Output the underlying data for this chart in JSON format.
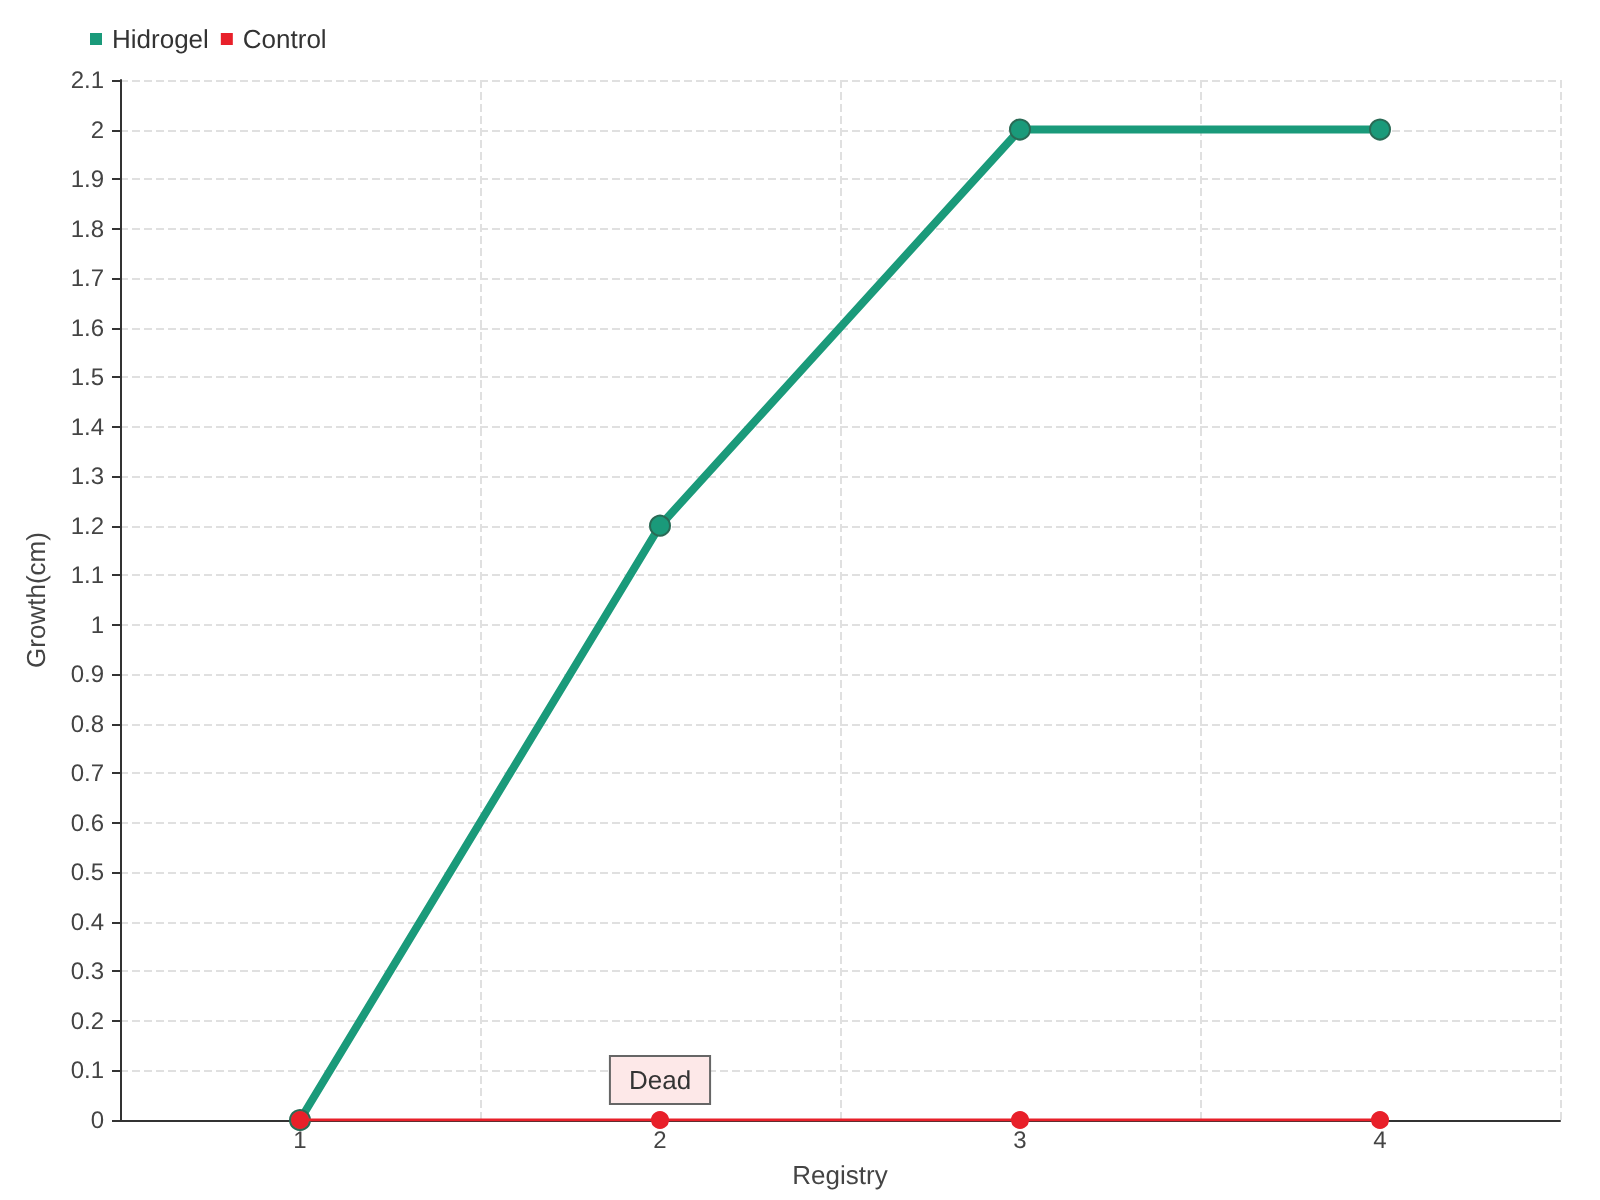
{
  "chart_data": {
    "type": "line",
    "xlabel": "Registry",
    "ylabel": "Growth(cm)",
    "categories": [
      "1",
      "2",
      "3",
      "4"
    ],
    "series": [
      {
        "name": "Hidrogel",
        "color": "#1a9a7a",
        "values": [
          0,
          1.2,
          2,
          2
        ]
      },
      {
        "name": "Control",
        "color": "#e8202a",
        "values": [
          0,
          0,
          0,
          0
        ]
      }
    ],
    "ylim": [
      0,
      2.1
    ],
    "yticks": [
      0,
      0.1,
      0.2,
      0.3,
      0.4,
      0.5,
      0.6,
      0.7,
      0.8,
      0.9,
      1,
      1.1,
      1.2,
      1.3,
      1.4,
      1.5,
      1.6,
      1.7,
      1.8,
      1.9,
      2,
      2.1
    ],
    "annotations": [
      {
        "text": "Dead",
        "x": "2",
        "y": 0
      }
    ],
    "grid": true,
    "legend": "top left",
    "marker": "circle",
    "line_style": "solid"
  }
}
